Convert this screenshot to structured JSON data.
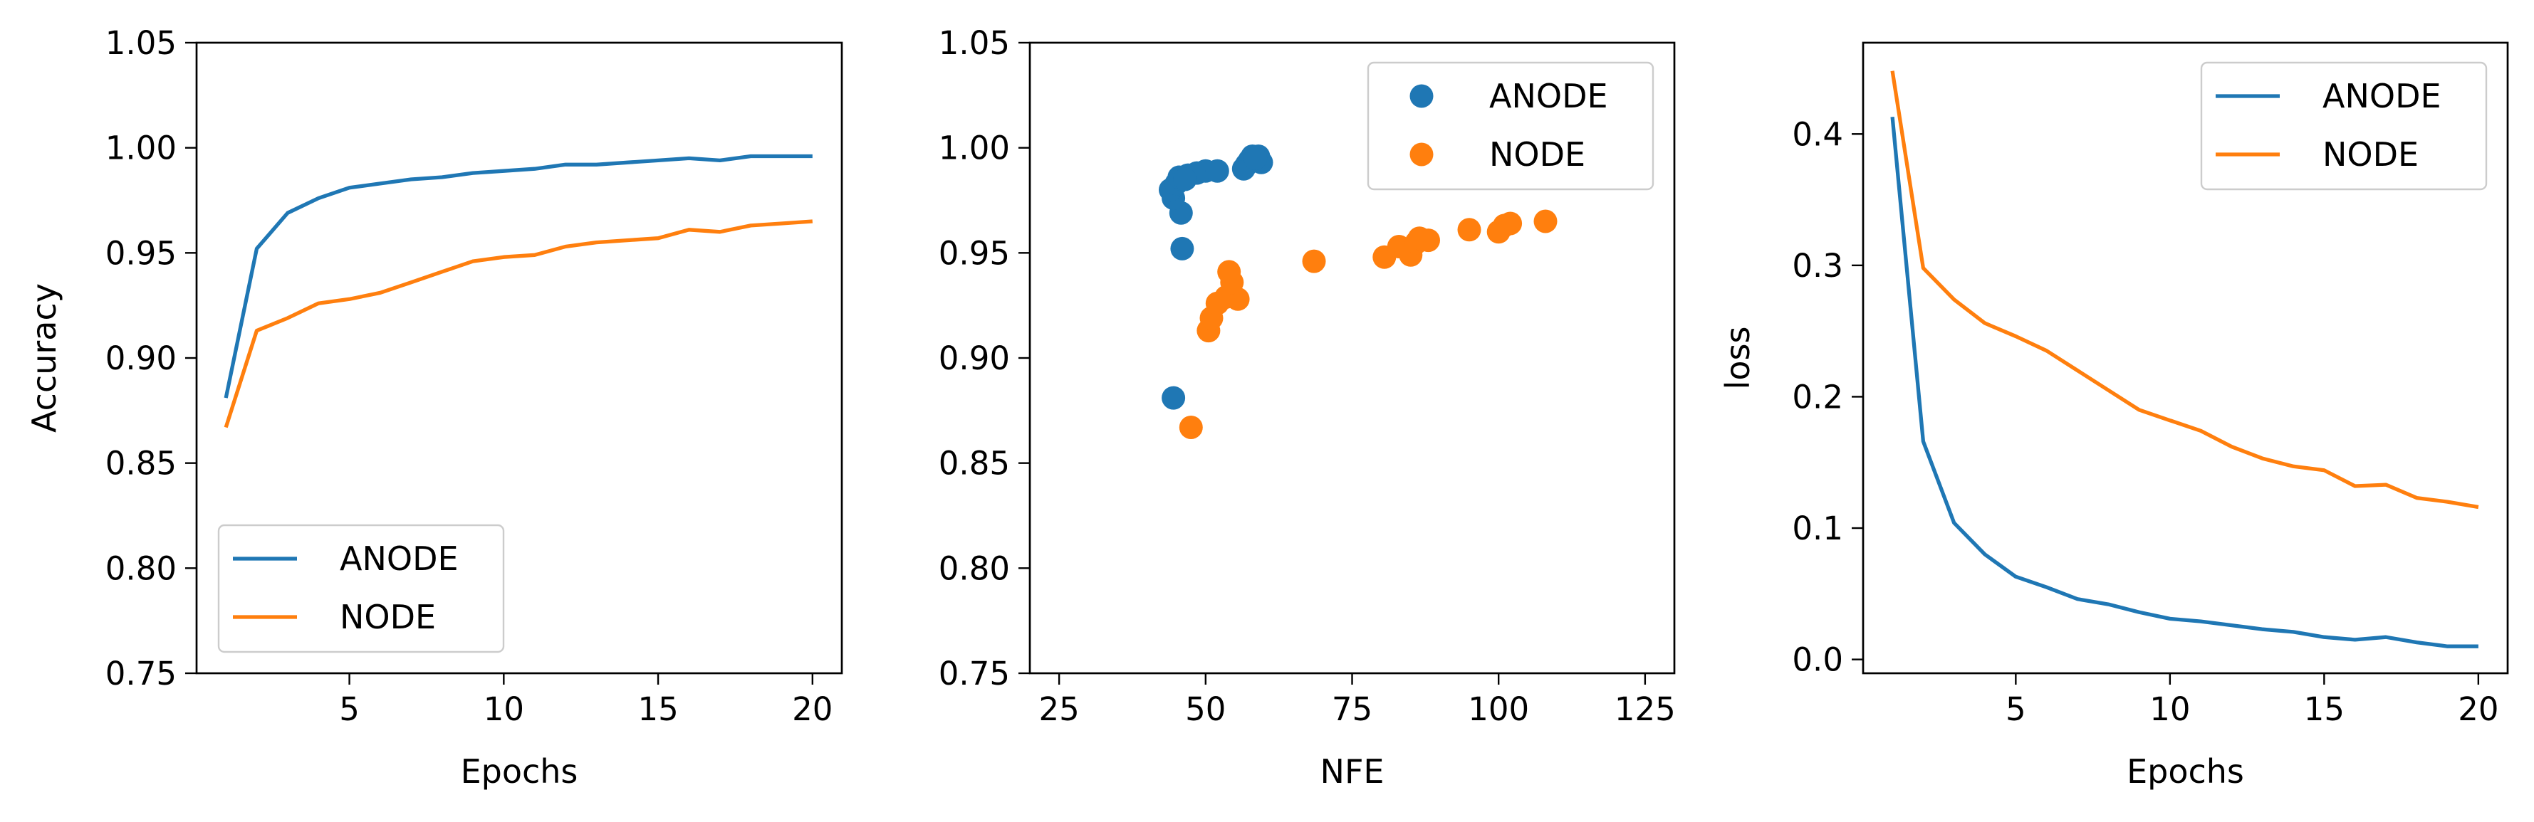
{
  "colors": {
    "anode": "#1f77b4",
    "node": "#ff7f0e"
  },
  "chart_data": [
    {
      "type": "line",
      "xlabel": "Epochs",
      "ylabel": "Accuracy",
      "xlim": [
        0.05,
        20.95
      ],
      "ylim": [
        0.75,
        1.05
      ],
      "xticks": [
        "5",
        "10",
        "15",
        "20"
      ],
      "yticks": [
        "0.75",
        "0.80",
        "0.85",
        "0.90",
        "0.95",
        "1.00",
        "1.05"
      ],
      "legend_position": "lower-left",
      "x": [
        1,
        2,
        3,
        4,
        5,
        6,
        7,
        8,
        9,
        10,
        11,
        12,
        13,
        14,
        15,
        16,
        17,
        18,
        19,
        20
      ],
      "series": [
        {
          "name": "ANODE",
          "color": "#1f77b4",
          "values": [
            0.881,
            0.952,
            0.969,
            0.976,
            0.981,
            0.983,
            0.985,
            0.986,
            0.988,
            0.989,
            0.99,
            0.992,
            0.992,
            0.993,
            0.994,
            0.995,
            0.994,
            0.996,
            0.996,
            0.996
          ]
        },
        {
          "name": "NODE",
          "color": "#ff7f0e",
          "values": [
            0.867,
            0.913,
            0.919,
            0.926,
            0.928,
            0.931,
            0.936,
            0.941,
            0.946,
            0.948,
            0.949,
            0.953,
            0.955,
            0.956,
            0.957,
            0.961,
            0.96,
            0.963,
            0.964,
            0.965
          ]
        }
      ]
    },
    {
      "type": "scatter",
      "xlabel": "NFE",
      "ylabel": "",
      "xlim": [
        20,
        130
      ],
      "ylim": [
        0.75,
        1.05
      ],
      "xticks": [
        "25",
        "50",
        "75",
        "100",
        "125"
      ],
      "yticks": [
        "0.75",
        "0.80",
        "0.85",
        "0.90",
        "0.95",
        "1.00",
        "1.05"
      ],
      "legend_position": "top-right",
      "series": [
        {
          "name": "ANODE",
          "color": "#1f77b4",
          "points": [
            [
              44.5,
              0.881
            ],
            [
              46,
              0.952
            ],
            [
              45.8,
              0.969
            ],
            [
              44.5,
              0.976
            ],
            [
              44,
              0.98
            ],
            [
              45,
              0.983
            ],
            [
              46,
              0.985
            ],
            [
              47,
              0.987
            ],
            [
              48.5,
              0.988
            ],
            [
              50,
              0.989
            ],
            [
              52,
              0.989
            ],
            [
              56.5,
              0.99
            ],
            [
              57,
              0.992
            ],
            [
              57.5,
              0.994
            ],
            [
              58,
              0.996
            ],
            [
              59,
              0.996
            ],
            [
              59.5,
              0.993
            ],
            [
              58.5,
              0.995
            ],
            [
              45.5,
              0.986
            ],
            [
              46.5,
              0.985
            ]
          ]
        },
        {
          "name": "NODE",
          "color": "#ff7f0e",
          "points": [
            [
              47.5,
              0.867
            ],
            [
              50.5,
              0.913
            ],
            [
              51,
              0.919
            ],
            [
              52,
              0.926
            ],
            [
              53.5,
              0.929
            ],
            [
              55.5,
              0.928
            ],
            [
              54.5,
              0.936
            ],
            [
              54,
              0.941
            ],
            [
              68.5,
              0.946
            ],
            [
              80.5,
              0.948
            ],
            [
              83,
              0.953
            ],
            [
              85,
              0.949
            ],
            [
              86,
              0.955
            ],
            [
              86.5,
              0.957
            ],
            [
              88,
              0.956
            ],
            [
              95,
              0.961
            ],
            [
              100,
              0.96
            ],
            [
              101,
              0.963
            ],
            [
              102,
              0.964
            ],
            [
              108,
              0.965
            ]
          ]
        }
      ]
    },
    {
      "type": "line",
      "xlabel": "Epochs",
      "ylabel": "loss",
      "xlim": [
        0.05,
        20.95
      ],
      "ylim": [
        -0.0105,
        0.4695
      ],
      "xticks": [
        "5",
        "10",
        "15",
        "20"
      ],
      "yticks": [
        "0.0",
        "0.1",
        "0.2",
        "0.3",
        "0.4"
      ],
      "legend_position": "top-right",
      "x": [
        1,
        2,
        3,
        4,
        5,
        6,
        7,
        8,
        9,
        10,
        11,
        12,
        13,
        14,
        15,
        16,
        17,
        18,
        19,
        20
      ],
      "series": [
        {
          "name": "ANODE",
          "color": "#1f77b4",
          "values": [
            0.413,
            0.166,
            0.104,
            0.08,
            0.063,
            0.055,
            0.046,
            0.042,
            0.036,
            0.031,
            0.029,
            0.026,
            0.023,
            0.021,
            0.017,
            0.015,
            0.017,
            0.013,
            0.01,
            0.01
          ]
        },
        {
          "name": "NODE",
          "color": "#ff7f0e",
          "values": [
            0.448,
            0.298,
            0.274,
            0.256,
            0.246,
            0.235,
            0.22,
            0.205,
            0.19,
            0.182,
            0.174,
            0.162,
            0.153,
            0.147,
            0.144,
            0.132,
            0.133,
            0.123,
            0.12,
            0.116
          ]
        }
      ]
    }
  ]
}
